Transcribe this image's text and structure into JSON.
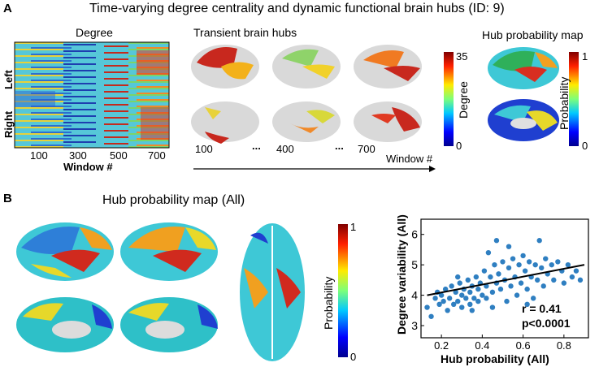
{
  "panel_a": {
    "letter": "A",
    "title": "Time-varying degree centrality and dynamic functional brain hubs (ID: 9)",
    "degree": {
      "title": "Degree",
      "ylabel_left": "Left",
      "ylabel_right": "Right",
      "xticks": [
        "100",
        "300",
        "500",
        "700"
      ],
      "xlabel": "Window #"
    },
    "transient": {
      "title": "Transient brain hubs",
      "windows": [
        "100",
        "400",
        "700"
      ],
      "ellipsis": "...",
      "arrow_label": "Window #",
      "colorbar": {
        "max": "35",
        "min": "0",
        "label": "Degree"
      }
    },
    "hubmap": {
      "title": "Hub probability map",
      "colorbar": {
        "max": "1",
        "min": "0",
        "label": "Probability"
      }
    }
  },
  "panel_b": {
    "letter": "B",
    "title": "Hub probability map (All)",
    "colorbar": {
      "max": "1",
      "min": "0",
      "label": "Probability"
    },
    "stats": {
      "r": "r = 0.41",
      "p": "p<0.0001"
    }
  },
  "chart_data": {
    "type": "scatter",
    "xlabel": "Hub probability (All)",
    "ylabel": "Degree variability (All)",
    "xlim": [
      0.1,
      0.92
    ],
    "ylim": [
      2.6,
      6.5
    ],
    "xticks": [
      0.2,
      0.4,
      0.6,
      0.8
    ],
    "yticks": [
      3,
      4,
      5,
      6
    ],
    "point_color": "#2f7fc1",
    "fit_line": {
      "x": [
        0.13,
        0.9
      ],
      "y": [
        4.0,
        5.0
      ]
    },
    "points": [
      [
        0.13,
        3.6
      ],
      [
        0.15,
        3.3
      ],
      [
        0.17,
        3.9
      ],
      [
        0.18,
        4.1
      ],
      [
        0.19,
        3.7
      ],
      [
        0.2,
        4.0
      ],
      [
        0.21,
        3.8
      ],
      [
        0.22,
        4.2
      ],
      [
        0.23,
        3.5
      ],
      [
        0.24,
        3.9
      ],
      [
        0.25,
        4.3
      ],
      [
        0.26,
        3.7
      ],
      [
        0.27,
        4.1
      ],
      [
        0.28,
        3.8
      ],
      [
        0.29,
        4.4
      ],
      [
        0.3,
        4.0
      ],
      [
        0.3,
        3.6
      ],
      [
        0.31,
        4.2
      ],
      [
        0.32,
        3.9
      ],
      [
        0.33,
        4.5
      ],
      [
        0.34,
        4.1
      ],
      [
        0.34,
        3.7
      ],
      [
        0.35,
        4.3
      ],
      [
        0.36,
        3.9
      ],
      [
        0.37,
        4.6
      ],
      [
        0.38,
        4.2
      ],
      [
        0.38,
        3.8
      ],
      [
        0.39,
        4.4
      ],
      [
        0.4,
        4.0
      ],
      [
        0.41,
        4.8
      ],
      [
        0.42,
        4.3
      ],
      [
        0.42,
        3.9
      ],
      [
        0.43,
        5.4
      ],
      [
        0.44,
        4.6
      ],
      [
        0.45,
        4.1
      ],
      [
        0.46,
        5.0
      ],
      [
        0.47,
        4.4
      ],
      [
        0.47,
        5.8
      ],
      [
        0.48,
        4.7
      ],
      [
        0.49,
        4.2
      ],
      [
        0.5,
        5.1
      ],
      [
        0.51,
        4.5
      ],
      [
        0.52,
        3.8
      ],
      [
        0.53,
        5.6
      ],
      [
        0.53,
        4.9
      ],
      [
        0.54,
        4.3
      ],
      [
        0.55,
        5.2
      ],
      [
        0.56,
        4.6
      ],
      [
        0.57,
        4.0
      ],
      [
        0.58,
        5.0
      ],
      [
        0.59,
        4.4
      ],
      [
        0.6,
        5.3
      ],
      [
        0.61,
        4.8
      ],
      [
        0.62,
        4.2
      ],
      [
        0.63,
        5.1
      ],
      [
        0.64,
        4.6
      ],
      [
        0.65,
        3.9
      ],
      [
        0.66,
        5.0
      ],
      [
        0.67,
        4.5
      ],
      [
        0.68,
        5.8
      ],
      [
        0.69,
        4.9
      ],
      [
        0.7,
        4.3
      ],
      [
        0.71,
        5.2
      ],
      [
        0.72,
        4.7
      ],
      [
        0.74,
        5.0
      ],
      [
        0.75,
        4.5
      ],
      [
        0.77,
        5.1
      ],
      [
        0.79,
        4.8
      ],
      [
        0.8,
        4.4
      ],
      [
        0.82,
        5.0
      ],
      [
        0.84,
        4.6
      ],
      [
        0.86,
        4.8
      ],
      [
        0.88,
        4.5
      ],
      [
        0.35,
        3.5
      ],
      [
        0.28,
        4.6
      ],
      [
        0.45,
        3.6
      ],
      [
        0.62,
        3.7
      ]
    ]
  }
}
